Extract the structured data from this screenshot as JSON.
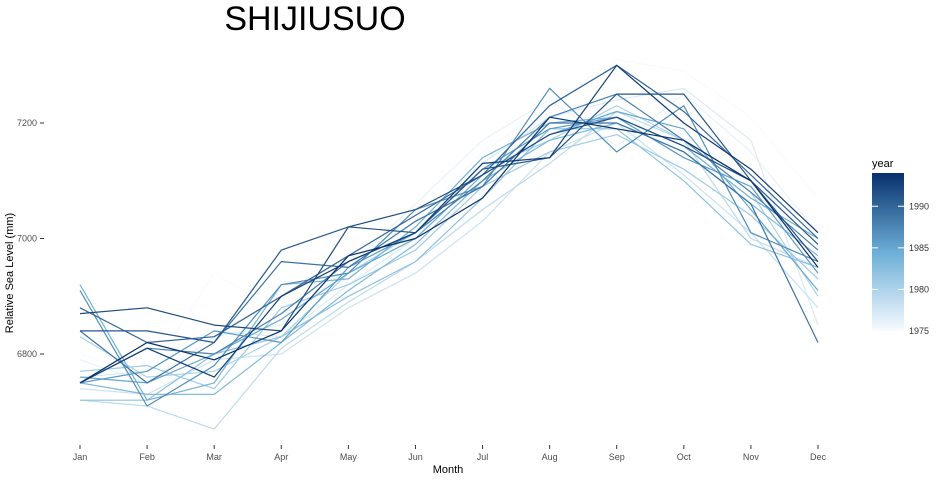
{
  "chart_data": {
    "type": "line",
    "title": "SHIJIUSUO",
    "xlabel": "Month",
    "ylabel": "Relative Sea Level (mm)",
    "categories": [
      "Jan",
      "Feb",
      "Mar",
      "Apr",
      "May",
      "Jun",
      "Jul",
      "Aug",
      "Sep",
      "Oct",
      "Nov",
      "Dec"
    ],
    "y_ticks": [
      6800,
      7000,
      7200
    ],
    "ylim": [
      6640,
      7330
    ],
    "grid": false,
    "color_scale": {
      "name": "year",
      "min": 1975,
      "max": 1994,
      "ticks": [
        1975,
        1980,
        1985,
        1990
      ],
      "low_color": "#f7fbff",
      "high_color": "#08306b"
    },
    "legend_position": "right",
    "series": [
      {
        "year": 1975,
        "values": [
          6800,
          6760,
          6940,
          6870,
          6960,
          7030,
          7150,
          7230,
          7310,
          7290,
          7210,
          7070
        ]
      },
      {
        "year": 1976,
        "values": [
          6790,
          6750,
          6830,
          6850,
          6950,
          7060,
          7170,
          7240,
          7160,
          7250,
          7150,
          7010
        ]
      },
      {
        "year": 1977,
        "values": [
          6760,
          6770,
          6840,
          6830,
          6920,
          7000,
          7130,
          7210,
          7240,
          7260,
          7170,
          6850
        ]
      },
      {
        "year": 1978,
        "values": [
          6740,
          6730,
          6790,
          6800,
          6880,
          6940,
          7030,
          7150,
          7200,
          7110,
          7010,
          6880
        ]
      },
      {
        "year": 1979,
        "values": [
          6720,
          6710,
          6670,
          6810,
          6890,
          6960,
          7050,
          7130,
          7220,
          7170,
          7000,
          6950
        ]
      },
      {
        "year": 1980,
        "values": [
          6830,
          6760,
          6770,
          6830,
          6940,
          7010,
          7120,
          7170,
          7230,
          7170,
          7080,
          6900
        ]
      },
      {
        "year": 1981,
        "values": [
          6770,
          6780,
          6740,
          6880,
          6920,
          6980,
          7090,
          7150,
          7180,
          7120,
          7040,
          6930
        ]
      },
      {
        "year": 1982,
        "values": [
          6720,
          6720,
          6800,
          6830,
          6900,
          6960,
          7070,
          7190,
          7190,
          7100,
          6990,
          6950
        ]
      },
      {
        "year": 1983,
        "values": [
          6750,
          6730,
          6730,
          6820,
          6910,
          6990,
          7100,
          7170,
          7200,
          7150,
          7060,
          6970
        ]
      },
      {
        "year": 1984,
        "values": [
          6920,
          6720,
          6750,
          6920,
          6930,
          7020,
          7140,
          7200,
          7210,
          7160,
          7070,
          7000
        ]
      },
      {
        "year": 1985,
        "values": [
          6760,
          6750,
          6800,
          6860,
          6940,
          7000,
          7110,
          7180,
          7220,
          7190,
          7050,
          6910
        ]
      },
      {
        "year": 1986,
        "values": [
          6750,
          6770,
          6840,
          6820,
          6950,
          7010,
          7120,
          7190,
          7210,
          7140,
          7090,
          6940
        ]
      },
      {
        "year": 1987,
        "values": [
          6910,
          6710,
          6780,
          6920,
          6940,
          7050,
          7090,
          7260,
          7150,
          7230,
          7010,
          6960
        ]
      },
      {
        "year": 1988,
        "values": [
          6750,
          6810,
          6800,
          6870,
          6960,
          7010,
          7100,
          7210,
          7250,
          7170,
          7080,
          6980
        ]
      },
      {
        "year": 1989,
        "values": [
          6840,
          6750,
          6820,
          6960,
          6950,
          7030,
          7090,
          7200,
          7200,
          7150,
          7060,
          6820
        ]
      },
      {
        "year": 1990,
        "values": [
          6880,
          6820,
          6830,
          6900,
          6970,
          7040,
          7110,
          7230,
          7300,
          7220,
          7110,
          7000
        ]
      },
      {
        "year": 1991,
        "values": [
          6840,
          6840,
          6820,
          6980,
          7020,
          7010,
          7120,
          7140,
          7250,
          7250,
          7100,
          6990
        ]
      },
      {
        "year": 1992,
        "values": [
          6870,
          6880,
          6850,
          6840,
          7020,
          7050,
          7110,
          7180,
          7210,
          7160,
          7100,
          6960
        ]
      },
      {
        "year": 1993,
        "values": [
          6750,
          6810,
          6760,
          6900,
          6960,
          7010,
          7130,
          7140,
          7300,
          7200,
          7120,
          7010
        ]
      },
      {
        "year": 1994,
        "values": [
          6750,
          6820,
          6790,
          6840,
          6970,
          7000,
          7070,
          7210,
          7190,
          7170,
          7100,
          6950
        ]
      }
    ]
  }
}
